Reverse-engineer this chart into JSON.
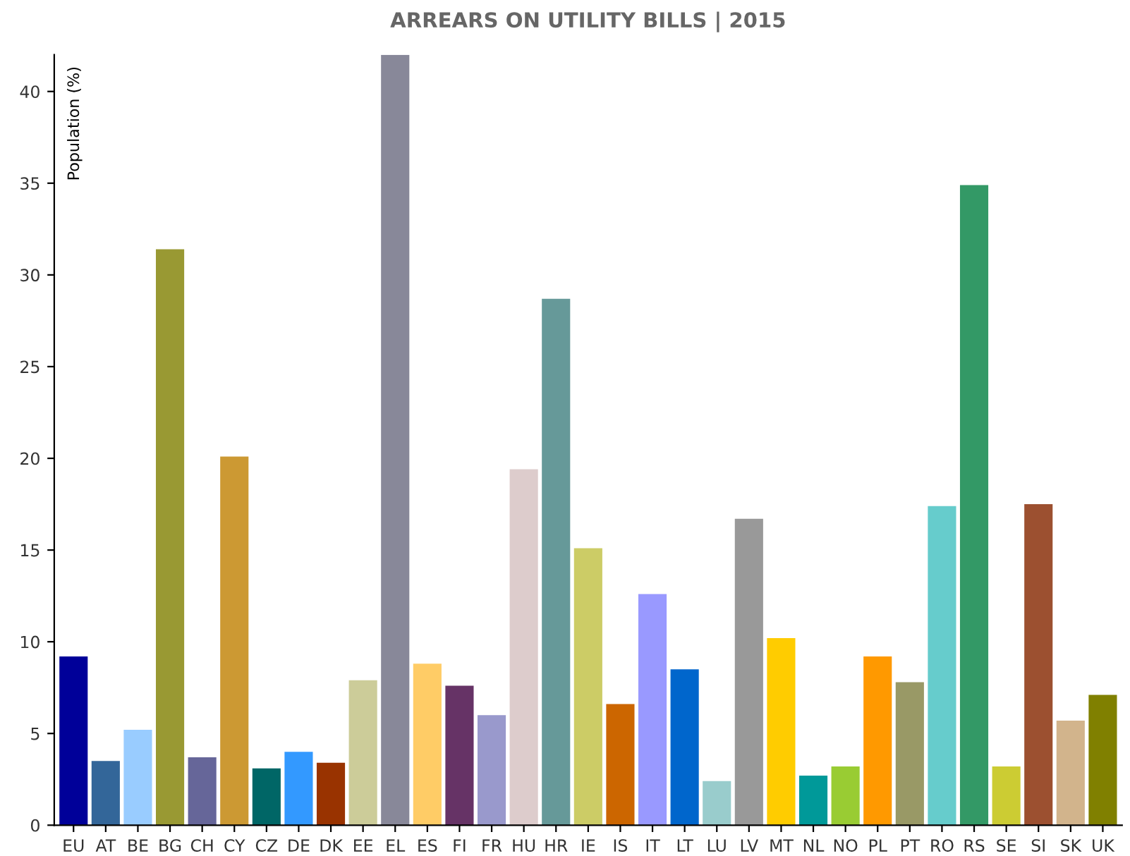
{
  "chart_data": {
    "type": "bar",
    "title": "ARREARS ON UTILITY BILLS | 2015",
    "ylabel": "Population (%)",
    "categories": [
      "EU",
      "AT",
      "BE",
      "BG",
      "CH",
      "CY",
      "CZ",
      "DE",
      "DK",
      "EE",
      "EL",
      "ES",
      "FI",
      "FR",
      "HU",
      "HR",
      "IE",
      "IS",
      "IT",
      "LT",
      "LU",
      "LV",
      "MT",
      "NL",
      "NO",
      "PL",
      "PT",
      "RO",
      "RS",
      "SE",
      "SI",
      "SK",
      "UK"
    ],
    "values": [
      9.2,
      3.5,
      5.2,
      31.4,
      3.7,
      20.1,
      3.1,
      4.0,
      3.4,
      7.9,
      42.0,
      8.8,
      7.6,
      6.0,
      19.4,
      28.7,
      15.1,
      6.6,
      12.6,
      8.5,
      2.4,
      16.7,
      10.2,
      2.7,
      3.2,
      9.2,
      7.8,
      17.4,
      34.9,
      3.2,
      17.5,
      5.7,
      7.1
    ],
    "colors": [
      "#000099",
      "#336699",
      "#99ccff",
      "#999933",
      "#666699",
      "#cc9933",
      "#006666",
      "#3399ff",
      "#993300",
      "#cccc99",
      "#888899",
      "#ffcc66",
      "#663366",
      "#9999cc",
      "#ddcccc",
      "#669999",
      "#cccc66",
      "#cc6600",
      "#9999ff",
      "#0066cc",
      "#99cccc",
      "#999999",
      "#ffcc00",
      "#009999",
      "#99cc33",
      "#ff9900",
      "#999966",
      "#66cccc",
      "#339966",
      "#cccc33",
      "#9c5030",
      "#d2b48c",
      "#808000"
    ],
    "ylim": [
      0,
      42
    ],
    "yticks": [
      0,
      5,
      10,
      15,
      20,
      25,
      30,
      35,
      40
    ],
    "grid": false,
    "legend": false
  }
}
